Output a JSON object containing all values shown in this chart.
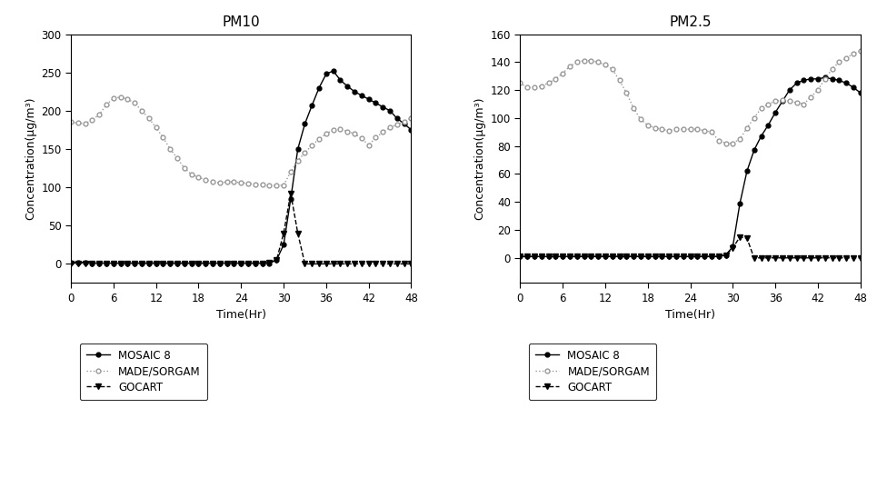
{
  "title_pm10": "PM10",
  "title_pm25": "PM2.5",
  "xlabel": "Time(Hr)",
  "ylabel": "Concentration(μg/m³)",
  "xlim": [
    0,
    48
  ],
  "xticks": [
    0,
    6,
    12,
    18,
    24,
    30,
    36,
    42,
    48
  ],
  "pm10_ylim": [
    -25,
    300
  ],
  "pm10_yticks": [
    0,
    50,
    100,
    150,
    200,
    250,
    300
  ],
  "pm25_ylim": [
    -18,
    160
  ],
  "pm25_yticks": [
    0,
    20,
    40,
    60,
    80,
    100,
    120,
    140,
    160
  ],
  "time": [
    0,
    1,
    2,
    3,
    4,
    5,
    6,
    7,
    8,
    9,
    10,
    11,
    12,
    13,
    14,
    15,
    16,
    17,
    18,
    19,
    20,
    21,
    22,
    23,
    24,
    25,
    26,
    27,
    28,
    29,
    30,
    31,
    32,
    33,
    34,
    35,
    36,
    37,
    38,
    39,
    40,
    41,
    42,
    43,
    44,
    45,
    46,
    47,
    48
  ],
  "pm10_mosaic": [
    2,
    2,
    2,
    1,
    1,
    1,
    1,
    1,
    1,
    1,
    1,
    1,
    1,
    1,
    1,
    1,
    1,
    1,
    1,
    1,
    1,
    1,
    1,
    1,
    1,
    1,
    1,
    1,
    1,
    5,
    25,
    85,
    150,
    183,
    207,
    230,
    248,
    252,
    240,
    232,
    225,
    220,
    215,
    210,
    205,
    200,
    190,
    183,
    175
  ],
  "pm10_made": [
    185,
    184,
    183,
    188,
    195,
    208,
    216,
    218,
    215,
    210,
    200,
    190,
    178,
    165,
    150,
    138,
    125,
    117,
    113,
    110,
    107,
    106,
    107,
    107,
    106,
    105,
    104,
    104,
    103,
    102,
    103,
    120,
    135,
    145,
    155,
    163,
    170,
    175,
    176,
    173,
    170,
    164,
    155,
    165,
    172,
    178,
    182,
    186,
    190
  ],
  "pm10_gocart": [
    1,
    1,
    1,
    1,
    1,
    1,
    1,
    1,
    1,
    1,
    1,
    1,
    1,
    1,
    1,
    1,
    1,
    1,
    1,
    1,
    1,
    1,
    1,
    1,
    1,
    1,
    1,
    1,
    2,
    5,
    40,
    92,
    40,
    0,
    0,
    0,
    0,
    0,
    0,
    0,
    0,
    0,
    0,
    0,
    0,
    0,
    0,
    0,
    0
  ],
  "pm25_mosaic": [
    1,
    1,
    1,
    1,
    1,
    1,
    1,
    1,
    1,
    1,
    1,
    1,
    1,
    1,
    1,
    1,
    1,
    1,
    1,
    1,
    1,
    1,
    1,
    1,
    1,
    1,
    1,
    1,
    1,
    2,
    8,
    39,
    62,
    77,
    87,
    95,
    104,
    112,
    120,
    125,
    127,
    128,
    128,
    129,
    128,
    127,
    125,
    122,
    118
  ],
  "pm25_made": [
    125,
    122,
    122,
    123,
    125,
    128,
    132,
    137,
    140,
    141,
    141,
    140,
    138,
    135,
    127,
    118,
    107,
    99,
    95,
    93,
    92,
    91,
    92,
    92,
    92,
    92,
    91,
    90,
    84,
    82,
    82,
    85,
    93,
    100,
    107,
    110,
    112,
    113,
    112,
    111,
    110,
    115,
    120,
    128,
    135,
    140,
    143,
    146,
    148
  ],
  "pm25_gocart": [
    1,
    1,
    1,
    1,
    1,
    1,
    1,
    1,
    1,
    1,
    1,
    1,
    1,
    1,
    1,
    1,
    1,
    1,
    1,
    1,
    1,
    1,
    1,
    1,
    1,
    1,
    1,
    1,
    1,
    2,
    7,
    15,
    14,
    0,
    0,
    0,
    0,
    0,
    0,
    0,
    0,
    0,
    0,
    0,
    0,
    0,
    0,
    0,
    0
  ],
  "legend_labels": [
    "MOSAIC 8",
    "MADE/SORGAM",
    "GOCART"
  ],
  "background_color": "#ffffff"
}
